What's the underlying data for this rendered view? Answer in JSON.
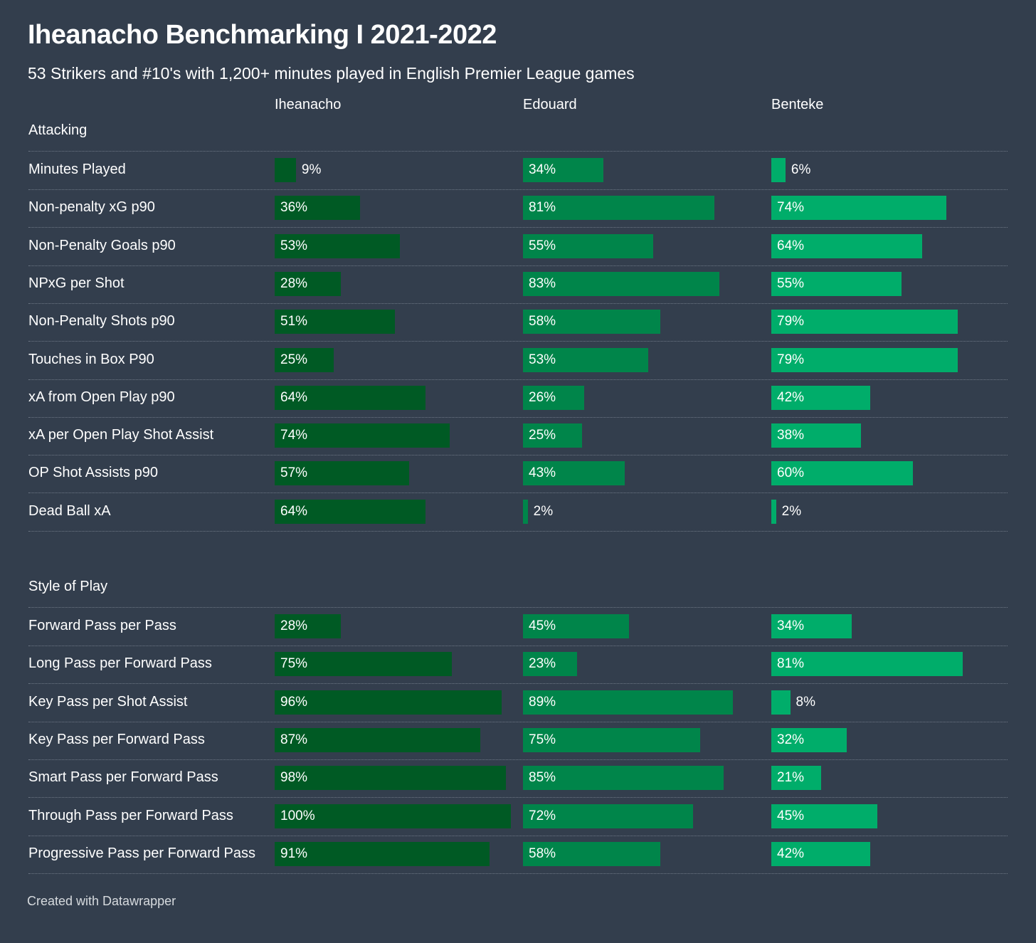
{
  "title": "Iheanacho Benchmarking I 2021-2022",
  "subtitle": "53 Strikers and #10's with 1,200+ minutes played in English Premier League games",
  "footer": "Created with Datawrapper",
  "chart_data": {
    "type": "bar",
    "orientation": "horizontal",
    "unit": "%",
    "xlim": [
      0,
      100
    ],
    "players": [
      {
        "name": "Iheanacho",
        "color": "#005a24"
      },
      {
        "name": "Edouard",
        "color": "#00854a"
      },
      {
        "name": "Benteke",
        "color": "#00ad6a"
      }
    ],
    "sections": [
      {
        "name": "Attacking",
        "metrics": [
          {
            "label": "Minutes Played",
            "values": [
              9,
              34,
              6
            ]
          },
          {
            "label": "Non-penalty xG p90",
            "values": [
              36,
              81,
              74
            ]
          },
          {
            "label": "Non-Penalty Goals p90",
            "values": [
              53,
              55,
              64
            ]
          },
          {
            "label": "NPxG per Shot",
            "values": [
              28,
              83,
              55
            ]
          },
          {
            "label": "Non-Penalty Shots p90",
            "values": [
              51,
              58,
              79
            ]
          },
          {
            "label": "Touches in Box P90",
            "values": [
              25,
              53,
              79
            ]
          },
          {
            "label": "xA from Open Play p90",
            "values": [
              64,
              26,
              42
            ]
          },
          {
            "label": "xA per Open Play Shot Assist",
            "values": [
              74,
              25,
              38
            ]
          },
          {
            "label": "OP Shot Assists p90",
            "values": [
              57,
              43,
              60
            ]
          },
          {
            "label": "Dead Ball xA",
            "values": [
              64,
              2,
              2
            ]
          }
        ]
      },
      {
        "name": "Style of Play",
        "metrics": [
          {
            "label": "Forward Pass per Pass",
            "values": [
              28,
              45,
              34
            ]
          },
          {
            "label": "Long Pass per Forward Pass",
            "values": [
              75,
              23,
              81
            ]
          },
          {
            "label": "Key Pass per Shot Assist",
            "values": [
              96,
              89,
              8
            ]
          },
          {
            "label": "Key Pass per Forward Pass",
            "values": [
              87,
              75,
              32
            ]
          },
          {
            "label": "Smart Pass per Forward Pass",
            "values": [
              98,
              85,
              21
            ]
          },
          {
            "label": "Through Pass per Forward Pass",
            "values": [
              100,
              72,
              45
            ]
          },
          {
            "label": "Progressive Pass per Forward Pass",
            "values": [
              91,
              58,
              42
            ]
          }
        ]
      }
    ]
  }
}
